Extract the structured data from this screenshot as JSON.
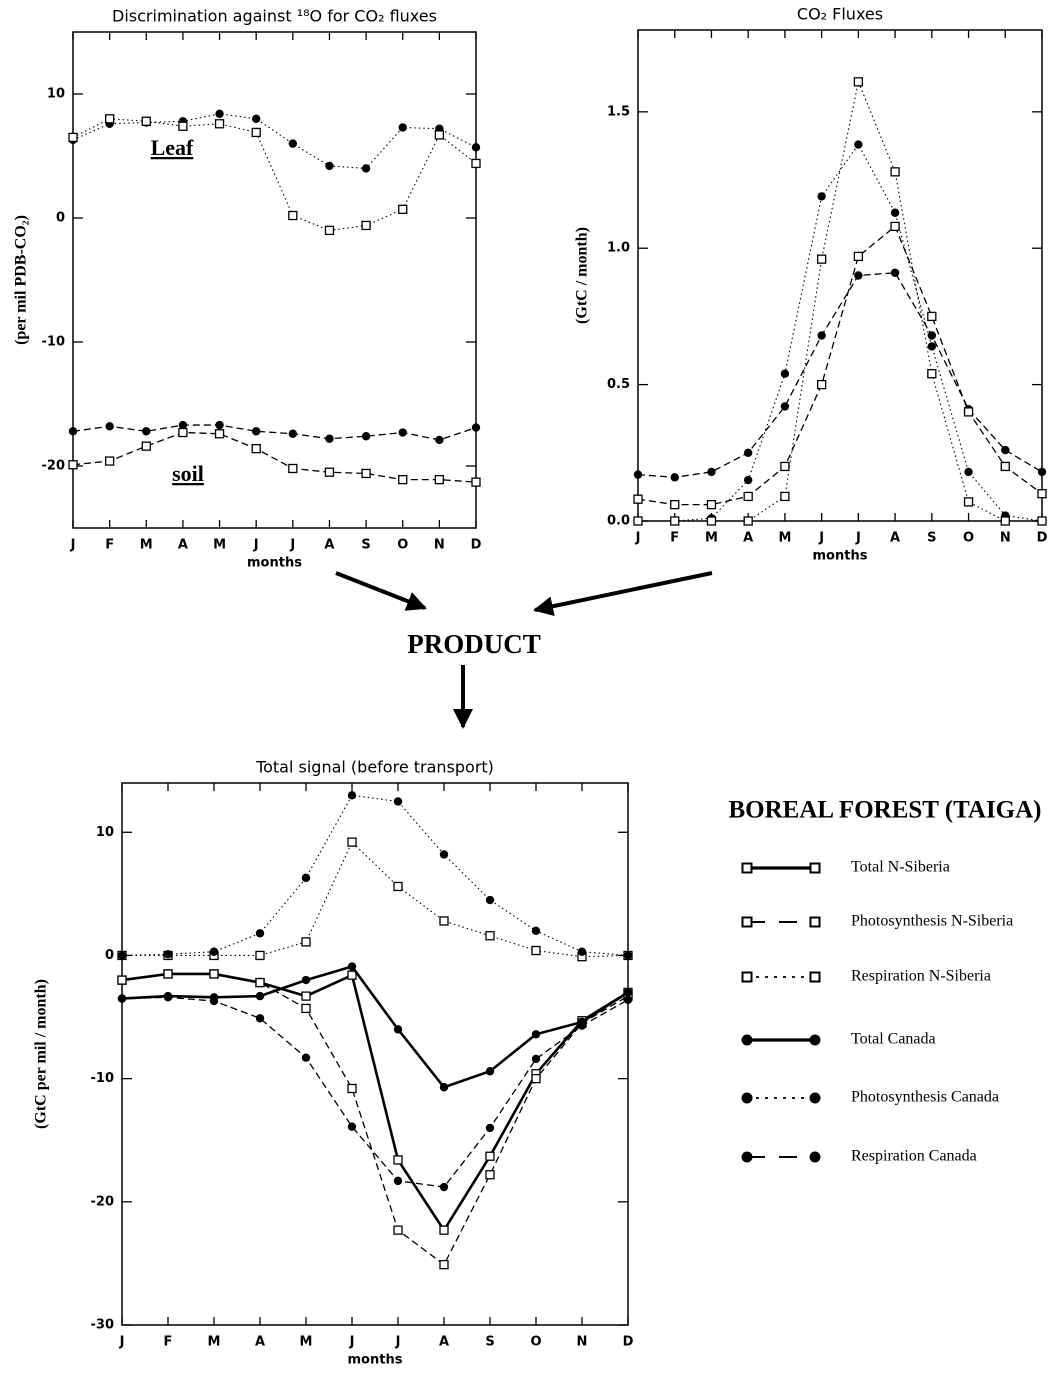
{
  "product_label": "PRODUCT",
  "chart_data": [
    {
      "type": "line",
      "title": "Discrimination against ¹⁸O for CO₂ fluxes",
      "ylabel": "(per mil PDB-CO₂)",
      "xlabel": "months",
      "categories": [
        "J",
        "F",
        "M",
        "A",
        "M",
        "J",
        "J",
        "A",
        "S",
        "O",
        "N",
        "D"
      ],
      "ylim": [
        -25,
        15
      ],
      "yticks": [
        -20,
        -10,
        0,
        10
      ],
      "annotations": [
        "Leaf",
        "soil"
      ],
      "series": [
        {
          "color": "#000000",
          "dash": "dotted",
          "marker": "circle",
          "values": [
            6.3,
            7.6,
            7.7,
            7.8,
            8.4,
            8.0,
            6.0,
            4.2,
            4.0,
            7.3,
            7.2,
            5.7
          ]
        },
        {
          "color": "#000000",
          "dash": "dotted",
          "marker": "square",
          "values": [
            6.5,
            8.0,
            7.8,
            7.4,
            7.6,
            6.9,
            0.2,
            -1.0,
            -0.6,
            0.7,
            6.7,
            4.4
          ]
        },
        {
          "color": "#000000",
          "dash": "dashed",
          "marker": "circle",
          "values": [
            -17.2,
            -16.8,
            -17.2,
            -16.7,
            -16.7,
            -17.2,
            -17.4,
            -17.8,
            -17.6,
            -17.3,
            -17.9,
            -16.9
          ]
        },
        {
          "color": "#000000",
          "dash": "dashed",
          "marker": "square",
          "values": [
            -19.9,
            -19.6,
            -18.4,
            -17.3,
            -17.4,
            -18.6,
            -20.2,
            -20.5,
            -20.6,
            -21.1,
            -21.1,
            -21.3
          ]
        }
      ]
    },
    {
      "type": "line",
      "title": "CO₂ Fluxes",
      "ylabel": "(GtC / month)",
      "xlabel": "months",
      "categories": [
        "J",
        "F",
        "M",
        "A",
        "M",
        "J",
        "J",
        "A",
        "S",
        "O",
        "N",
        "D"
      ],
      "ylim": [
        0,
        1.8
      ],
      "yticks": [
        {
          "value": 0,
          "label": "0.0"
        },
        0.5,
        {
          "value": 1,
          "label": "1.0"
        },
        1.5
      ],
      "series": [
        {
          "color": "#000000",
          "dash": "dotted",
          "marker": "circle",
          "values": [
            0,
            0,
            0.01,
            0.15,
            0.54,
            1.19,
            1.38,
            1.13,
            0.64,
            0.18,
            0.02,
            0
          ]
        },
        {
          "color": "#000000",
          "dash": "dotted",
          "marker": "square",
          "values": [
            0,
            0,
            0,
            0,
            0.09,
            0.96,
            1.61,
            1.28,
            0.54,
            0.07,
            0,
            0
          ]
        },
        {
          "color": "#000000",
          "dash": "dashed",
          "marker": "circle",
          "values": [
            0.17,
            0.16,
            0.18,
            0.25,
            0.42,
            0.68,
            0.9,
            0.91,
            0.68,
            0.41,
            0.26,
            0.18
          ]
        },
        {
          "color": "#000000",
          "dash": "dashed",
          "marker": "square",
          "values": [
            0.08,
            0.06,
            0.06,
            0.09,
            0.2,
            0.5,
            0.97,
            1.08,
            0.75,
            0.4,
            0.2,
            0.1
          ]
        }
      ]
    },
    {
      "type": "line",
      "title": "Total signal (before transport)",
      "ylabel": "(GtC per mil / month)",
      "xlabel": "months",
      "categories": [
        "J",
        "F",
        "M",
        "A",
        "M",
        "J",
        "J",
        "A",
        "S",
        "O",
        "N",
        "D"
      ],
      "ylim": [
        -30,
        14
      ],
      "yticks": [
        -30,
        -20,
        -10,
        0,
        10
      ],
      "legend_title": "BOREAL FOREST (TAIGA)",
      "legend": "right",
      "series": [
        {
          "name": "Total N-Siberia",
          "color": "#000000",
          "dash": "solid",
          "marker": "square",
          "values": [
            -2.0,
            -1.5,
            -1.5,
            -2.2,
            -3.3,
            -1.6,
            -16.6,
            -22.3,
            -16.3,
            -9.6,
            -5.3,
            -3.0
          ]
        },
        {
          "name": "Photosynthesis N-Siberia",
          "color": "#000000",
          "dash": "dashed",
          "marker": "square",
          "values": [
            -2.0,
            -1.5,
            -1.5,
            -2.2,
            -4.3,
            -10.8,
            -22.3,
            -25.1,
            -17.8,
            -10.0,
            -5.5,
            -3.3
          ]
        },
        {
          "name": "Respiration N-Siberia",
          "color": "#000000",
          "dash": "dotted",
          "marker": "square",
          "values": [
            0,
            0,
            0,
            0,
            1.1,
            9.2,
            5.6,
            2.8,
            1.6,
            0.4,
            -0.1,
            0
          ]
        },
        {
          "name": "Total Canada",
          "color": "#000000",
          "dash": "solid",
          "marker": "circle",
          "values": [
            -3.5,
            -3.3,
            -3.4,
            -3.3,
            -2.0,
            -0.9,
            -6.0,
            -10.7,
            -9.4,
            -6.4,
            -5.4,
            -3.0
          ]
        },
        {
          "name": "Photosynthesis Canada",
          "color": "#000000",
          "dash": "dotted",
          "marker": "circle",
          "values": [
            0,
            0.1,
            0.3,
            1.8,
            6.3,
            13.0,
            12.5,
            8.2,
            4.5,
            2.0,
            0.3,
            0
          ]
        },
        {
          "name": "Respiration Canada",
          "color": "#000000",
          "dash": "dashed",
          "marker": "circle",
          "values": [
            -3.5,
            -3.4,
            -3.7,
            -5.1,
            -8.3,
            -13.9,
            -18.3,
            -18.8,
            -14.0,
            -8.4,
            -5.7,
            -3.6
          ]
        }
      ]
    }
  ]
}
